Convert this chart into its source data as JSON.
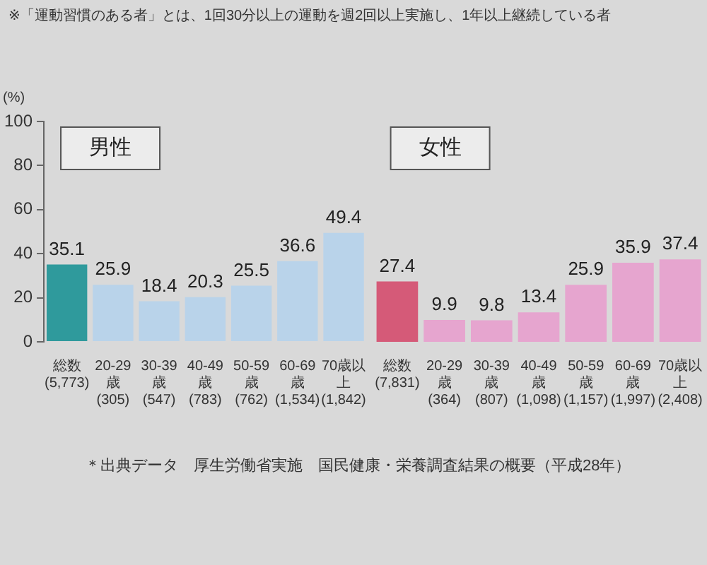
{
  "chart_data": [
    {
      "type": "bar",
      "title": "男性",
      "ylabel": "(%)",
      "categories": [
        "総数\n(5,773)",
        "20-29歳\n(305)",
        "30-39歳\n(547)",
        "40-49歳\n(783)",
        "50-59歳\n(762)",
        "60-69歳\n(1,534)",
        "70歳以上\n(1,842)"
      ],
      "values": [
        35.1,
        25.9,
        18.4,
        20.3,
        25.5,
        36.6,
        49.4
      ],
      "colors": [
        "#2f9a9c",
        "#b9d3ea",
        "#b9d3ea",
        "#b9d3ea",
        "#b9d3ea",
        "#b9d3ea",
        "#b9d3ea"
      ],
      "ylim": [
        0,
        100
      ],
      "yticks": [
        0,
        20,
        40,
        60,
        80,
        100
      ],
      "grid": false,
      "legend": false,
      "data_labels": true,
      "annotations": [
        "※「運動習慣のある者」とは、1回30分以上の運動を週2回以上実施し、1年以上継続している者",
        "＊出典データ　厚生労働省実施　国民健康・栄養調査結果の概要（平成28年）"
      ]
    },
    {
      "type": "bar",
      "title": "女性",
      "categories": [
        "総数\n(7,831)",
        "20-29歳\n(364)",
        "30-39歳\n(807)",
        "40-49歳\n(1,098)",
        "50-59歳\n(1,157)",
        "60-69歳\n(1,997)",
        "70歳以上\n(2,408)"
      ],
      "values": [
        27.4,
        9.9,
        9.8,
        13.4,
        25.9,
        35.9,
        37.4
      ],
      "colors": [
        "#d55a78",
        "#e6a5cf",
        "#e6a5cf",
        "#e6a5cf",
        "#e6a5cf",
        "#e6a5cf",
        "#e6a5cf"
      ],
      "ylim": [
        0,
        100
      ],
      "tick_labels": "x",
      "grid": false,
      "legend": false,
      "data_labels": true
    }
  ]
}
